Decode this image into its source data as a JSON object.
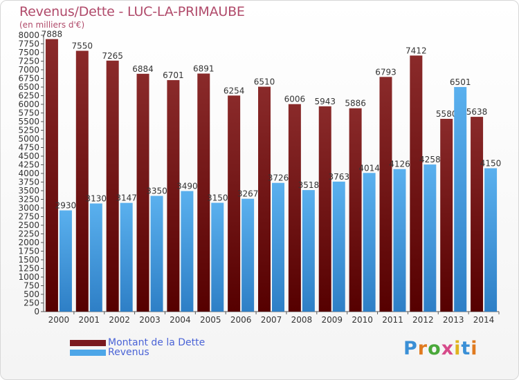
{
  "title": "Revenus/Dette - LUC-LA-PRIMAUBE",
  "subtitle": "(en milliers d'€)",
  "logo": "Proxiti",
  "colors": {
    "dette": "#7a1a1f",
    "revenus": "#4da6e8",
    "title": "#b04a6a",
    "legend_text": "#4a63d6"
  },
  "legend": [
    {
      "label": "Montant de la Dette",
      "color": "#7a1a1f"
    },
    {
      "label": "Revenus",
      "color": "#4da6e8"
    }
  ],
  "chart_data": {
    "type": "bar",
    "title": "Revenus/Dette - LUC-LA-PRIMAUBE",
    "categories": [
      "2000",
      "2001",
      "2002",
      "2003",
      "2004",
      "2005",
      "2006",
      "2007",
      "2008",
      "2009",
      "2010",
      "2011",
      "2012",
      "2013",
      "2014"
    ],
    "series": [
      {
        "name": "Montant de la Dette",
        "values": [
          7888,
          7550,
          7265,
          6884,
          6701,
          6891,
          6254,
          6510,
          6006,
          5943,
          5886,
          6793,
          7412,
          5580,
          5638
        ]
      },
      {
        "name": "Revenus",
        "values": [
          2930,
          3130,
          3147,
          3350,
          3490,
          3150,
          3267,
          3726,
          3518,
          3763,
          4014,
          4126,
          4258,
          6501,
          4150
        ]
      }
    ],
    "ylim": [
      0,
      8000
    ],
    "yticks": [
      0,
      250,
      500,
      750,
      1000,
      1250,
      1500,
      1750,
      2000,
      2250,
      2500,
      2750,
      3000,
      3250,
      3500,
      3750,
      4000,
      4250,
      4500,
      4750,
      5000,
      5250,
      5500,
      5750,
      6000,
      6250,
      6500,
      6750,
      7000,
      7250,
      7500,
      7750,
      8000
    ],
    "ytick_labels": [
      "0",
      "250",
      "500",
      "750",
      "1000",
      "1250",
      "1500",
      "1750",
      "2000",
      "2250",
      "2500",
      "2750",
      "3000",
      "3250",
      "3500",
      "3750",
      "4000",
      "4250",
      "4500",
      "4750",
      "5000",
      "5250",
      "5500",
      "5750",
      "6000",
      "6250",
      "6500",
      "6750",
      "7000",
      "7250",
      "7500",
      "7750",
      "8000"
    ],
    "grid": false,
    "legend_position": "bottom-left"
  }
}
